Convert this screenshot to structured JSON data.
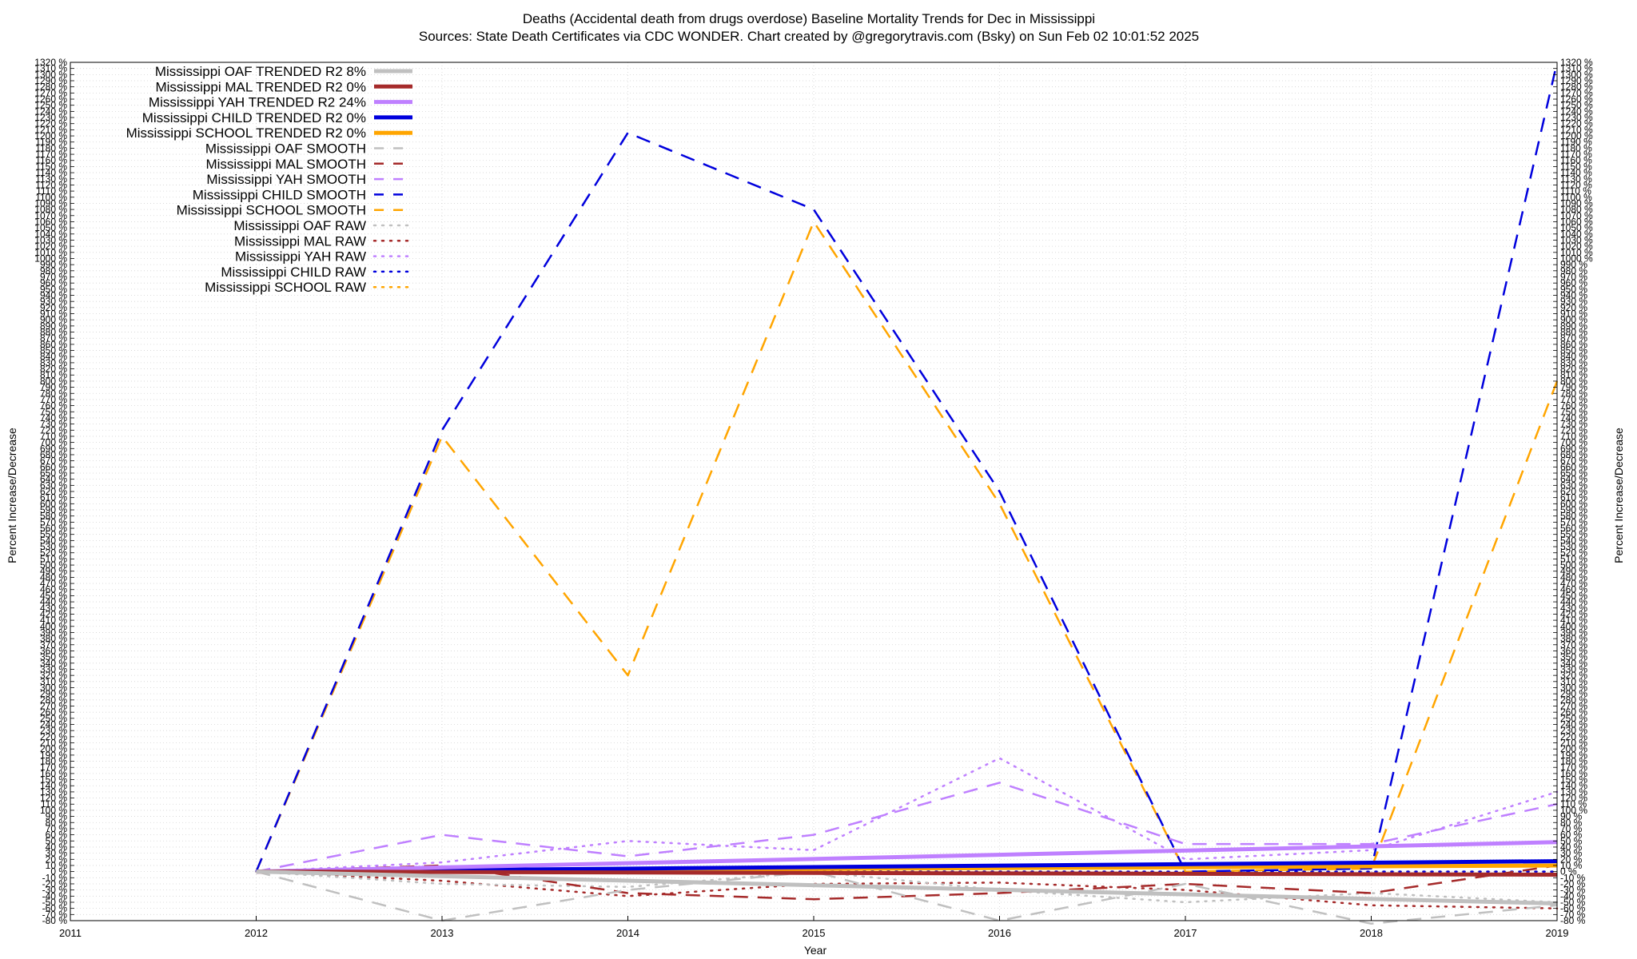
{
  "chart_data": {
    "type": "line",
    "title_line1": "Deaths (Accidental death from drugs overdose)  Baseline Mortality Trends for Dec in Mississippi",
    "title_line2": "Sources: State Death Certificates via CDC WONDER.              Chart created by @gregorytravis.com (Bsky) on Sun Feb 02 10:01:52 2025",
    "xlabel": "Year",
    "ylabel": "Percent Increase/Decrease",
    "ylabel_right": "Percent Increase/Decrease",
    "xlim": [
      2011,
      2019
    ],
    "ylim": [
      -80,
      1320
    ],
    "ytick_step": 10,
    "xticks": [
      "2011",
      "2012",
      "2013",
      "2014",
      "2015",
      "2016",
      "2017",
      "2018",
      "2019"
    ],
    "grid": true,
    "legend_position": "top-left",
    "series": [
      {
        "name": "Mississippi OAF TRENDED R2   8%",
        "style": "solid",
        "color": "#c0c0c0",
        "width": 5,
        "x": [
          2012,
          2019
        ],
        "y": [
          0,
          -52
        ]
      },
      {
        "name": "Mississippi MAL TRENDED R2   0%",
        "style": "solid",
        "color": "#a52a2a",
        "width": 5,
        "x": [
          2012,
          2019
        ],
        "y": [
          0,
          -5
        ]
      },
      {
        "name": "Mississippi YAH TRENDED R2  24%",
        "style": "solid",
        "color": "#bf80ff",
        "width": 5,
        "x": [
          2012,
          2019
        ],
        "y": [
          0,
          48
        ]
      },
      {
        "name": "Mississippi CHILD TRENDED R2   0%",
        "style": "solid",
        "color": "#0000dd",
        "width": 5,
        "x": [
          2012,
          2019
        ],
        "y": [
          0,
          17
        ]
      },
      {
        "name": "Mississippi SCHOOL TRENDED R2   0%",
        "style": "solid",
        "color": "#ffa500",
        "width": 5,
        "x": [
          2012,
          2019
        ],
        "y": [
          0,
          10
        ]
      },
      {
        "name": "Mississippi OAF SMOOTH",
        "style": "dashed",
        "color": "#c0c0c0",
        "width": 2.5,
        "x": [
          2012,
          2013,
          2014,
          2015,
          2016,
          2017,
          2018,
          2019
        ],
        "y": [
          0,
          -80,
          -30,
          0,
          -80,
          -20,
          -85,
          -55
        ]
      },
      {
        "name": "Mississippi MAL SMOOTH",
        "style": "dashed",
        "color": "#a52a2a",
        "width": 2.5,
        "x": [
          2012,
          2013,
          2014,
          2015,
          2016,
          2017,
          2018,
          2019
        ],
        "y": [
          0,
          10,
          -35,
          -45,
          -35,
          -20,
          -35,
          10
        ]
      },
      {
        "name": "Mississippi YAH SMOOTH",
        "style": "dashed",
        "color": "#bf80ff",
        "width": 2.5,
        "x": [
          2012,
          2013,
          2014,
          2015,
          2016,
          2017,
          2018,
          2019
        ],
        "y": [
          0,
          60,
          25,
          60,
          145,
          45,
          45,
          110
        ]
      },
      {
        "name": "Mississippi CHILD SMOOTH",
        "style": "dashed",
        "color": "#0000dd",
        "width": 2.5,
        "x": [
          2012,
          2013,
          2014,
          2015,
          2016,
          2017,
          2018,
          2019
        ],
        "y": [
          0,
          720,
          1205,
          1080,
          620,
          0,
          5,
          1320
        ]
      },
      {
        "name": "Mississippi SCHOOL SMOOTH",
        "style": "dashed",
        "color": "#ffa500",
        "width": 2.5,
        "x": [
          2012,
          2013,
          2014,
          2015,
          2016,
          2017,
          2018,
          2019
        ],
        "y": [
          0,
          710,
          320,
          1060,
          600,
          0,
          5,
          800
        ]
      },
      {
        "name": "Mississippi OAF RAW",
        "style": "dotted",
        "color": "#c0c0c0",
        "width": 2.5,
        "x": [
          2012,
          2013,
          2014,
          2015,
          2016,
          2017,
          2018,
          2019
        ],
        "y": [
          0,
          -20,
          -25,
          0,
          -30,
          -50,
          -35,
          -50
        ]
      },
      {
        "name": "Mississippi MAL RAW",
        "style": "dotted",
        "color": "#a52a2a",
        "width": 2.5,
        "x": [
          2012,
          2013,
          2014,
          2015,
          2016,
          2017,
          2018,
          2019
        ],
        "y": [
          0,
          -15,
          -40,
          -20,
          -18,
          -30,
          -55,
          -60
        ]
      },
      {
        "name": "Mississippi YAH RAW",
        "style": "dotted",
        "color": "#bf80ff",
        "width": 2.5,
        "x": [
          2012,
          2013,
          2014,
          2015,
          2016,
          2017,
          2018,
          2019
        ],
        "y": [
          0,
          15,
          50,
          35,
          185,
          20,
          35,
          130
        ]
      },
      {
        "name": "Mississippi CHILD RAW",
        "style": "dotted",
        "color": "#0000dd",
        "width": 2.5,
        "x": [
          2012,
          2013,
          2014,
          2015,
          2016,
          2017,
          2018,
          2019
        ],
        "y": [
          0,
          0,
          0,
          0,
          0,
          0,
          0,
          0
        ]
      },
      {
        "name": "Mississippi SCHOOL RAW",
        "style": "dotted",
        "color": "#ffa500",
        "width": 2.5,
        "x": [
          2012,
          2013,
          2014,
          2015,
          2016,
          2017,
          2018,
          2019
        ],
        "y": [
          0,
          0,
          0,
          0,
          0,
          0,
          0,
          0
        ]
      }
    ]
  }
}
